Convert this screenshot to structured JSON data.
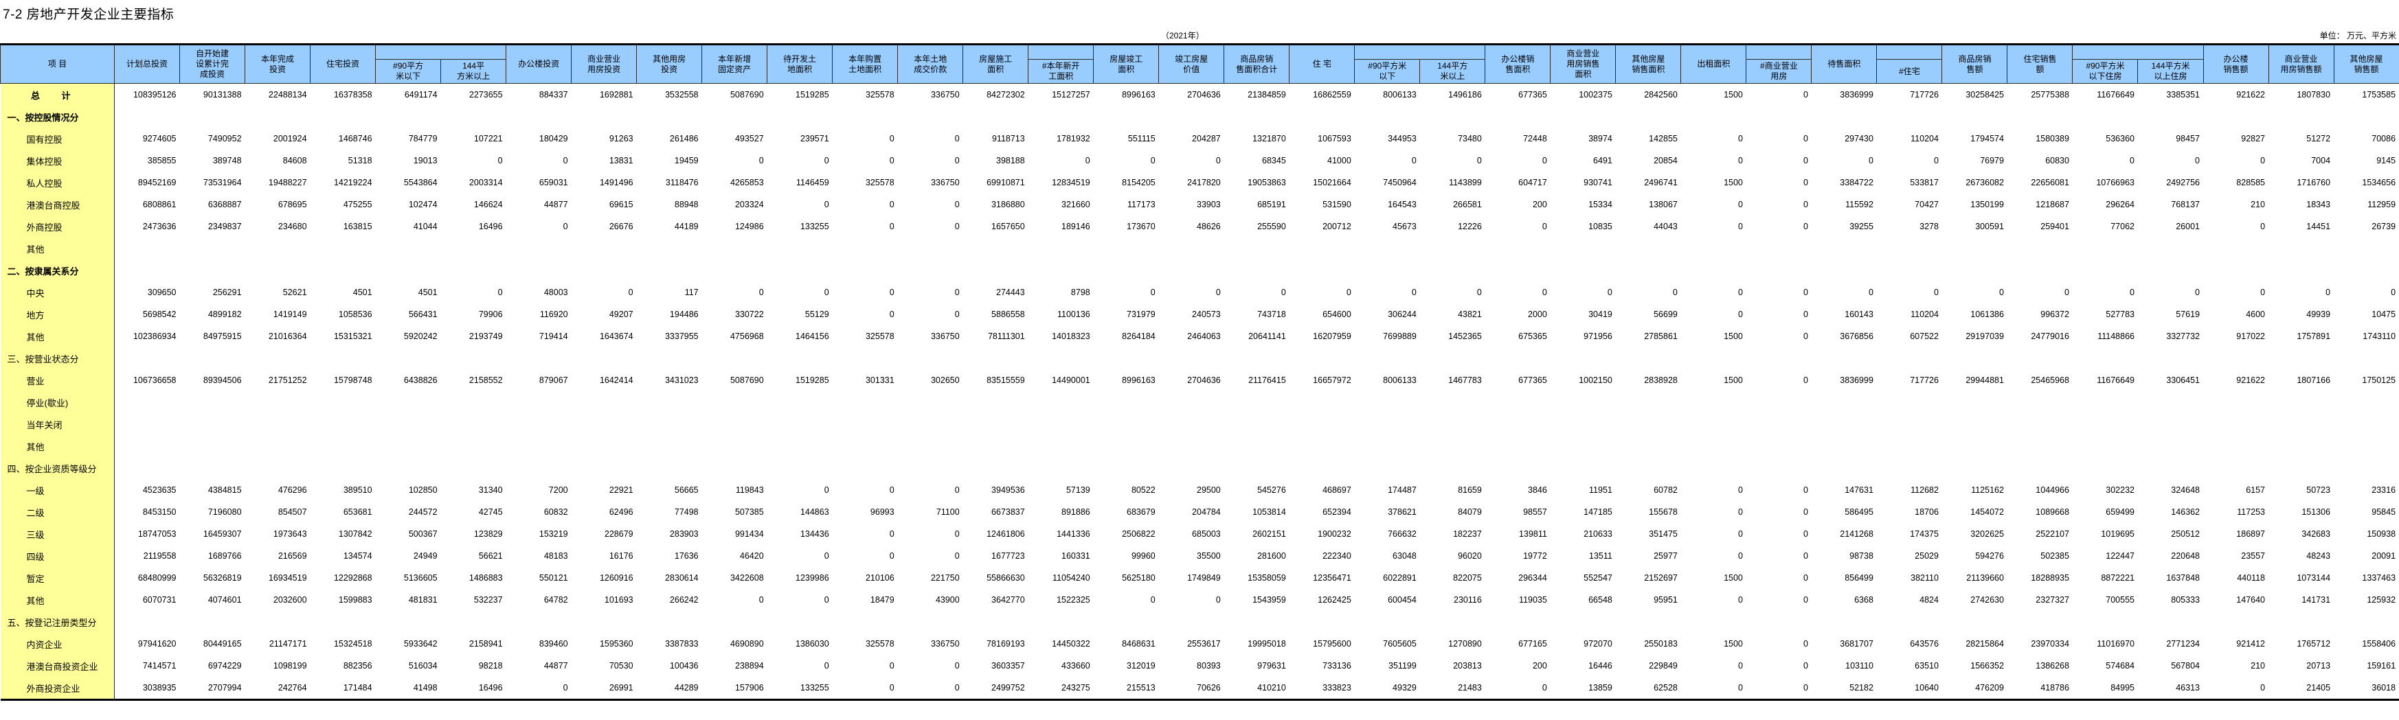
{
  "title": "7-2 房地产开发企业主要指标",
  "year": "（2021年）",
  "unit": "单位：  万元、平方米",
  "colors": {
    "header_bg": "#99ccff",
    "label_bg": "#ffff99"
  },
  "header": {
    "item_label": "项          目",
    "columns": [
      {
        "label": "计划总投资"
      },
      {
        "label": "自开始建\n设累计完\n成投资"
      },
      {
        "label": "本年完成\n投资"
      },
      {
        "label": "住宅投资",
        "group": true
      },
      {
        "label": "#90平方\n米以下",
        "sub": true
      },
      {
        "label": "144平\n方米以上",
        "sub": true
      },
      {
        "label": "办公楼投资"
      },
      {
        "label": "商业营业\n用房投资"
      },
      {
        "label": "其他用房\n投资"
      },
      {
        "label": "本年新增\n固定资产"
      },
      {
        "label": "待开发土\n地面积"
      },
      {
        "label": "本年购置\n土地面积"
      },
      {
        "label": "本年土地\n成交价款"
      },
      {
        "label": "房屋施工\n面积",
        "group": true
      },
      {
        "label": "#本年新开\n工面积",
        "sub": true
      },
      {
        "label": "房屋竣工\n面积"
      },
      {
        "label": "竣工房屋\n价值"
      },
      {
        "label": "商品房销\n售面积合计"
      },
      {
        "label": "住  宅",
        "group": true
      },
      {
        "label": "#90平方米\n以下",
        "sub": true
      },
      {
        "label": "144平方\n米以上",
        "sub": true
      },
      {
        "label": "办公楼销\n售面积"
      },
      {
        "label": "商业营业\n用房销售\n面积"
      },
      {
        "label": "其他房屋\n销售面积"
      },
      {
        "label": "出租面积",
        "group": true
      },
      {
        "label": "#商业营业\n用房",
        "sub": true
      },
      {
        "label": "待售面积",
        "group": true
      },
      {
        "label": "#住宅",
        "sub": true
      },
      {
        "label": "商品房销\n售额"
      },
      {
        "label": "住宅销售\n额",
        "group": true
      },
      {
        "label": "#90平方米\n以下住房",
        "sub": true
      },
      {
        "label": "144平方米\n以上住房",
        "sub": true
      },
      {
        "label": "办公楼\n销售额"
      },
      {
        "label": "商业营业\n用房销售额"
      },
      {
        "label": "其他房屋\n销售额"
      }
    ]
  },
  "rows": [
    {
      "label": "总  计",
      "kind": "total",
      "bold": true,
      "values": [
        108395126,
        90131388,
        22488134,
        16378358,
        6491174,
        2273655,
        884337,
        1692881,
        3532558,
        5087690,
        1519285,
        325578,
        336750,
        84272302,
        15127257,
        8996163,
        2704636,
        21384859,
        16862559,
        8006133,
        1496186,
        677365,
        1002375,
        2842560,
        1500,
        0,
        3836999,
        717726,
        30258425,
        25775388,
        11676649,
        3385351,
        921622,
        1807830,
        1753585
      ]
    },
    {
      "label": "一、按控股情况分",
      "kind": "section",
      "bold": true,
      "values": []
    },
    {
      "label": "国有控股",
      "values": [
        9274605,
        7490952,
        2001924,
        1468746,
        784779,
        107221,
        180429,
        91263,
        261486,
        493527,
        239571,
        0,
        0,
        9118713,
        1781932,
        551115,
        204287,
        1321870,
        1067593,
        344953,
        73480,
        72448,
        38974,
        142855,
        0,
        0,
        297430,
        110204,
        1794574,
        1580389,
        536360,
        98457,
        92827,
        51272,
        70086
      ]
    },
    {
      "label": "集体控股",
      "values": [
        385855,
        389748,
        84608,
        51318,
        19013,
        0,
        0,
        13831,
        19459,
        0,
        0,
        0,
        0,
        398188,
        0,
        0,
        0,
        68345,
        41000,
        0,
        0,
        0,
        6491,
        20854,
        0,
        0,
        0,
        0,
        76979,
        60830,
        0,
        0,
        0,
        7004,
        9145
      ]
    },
    {
      "label": "私人控股",
      "values": [
        89452169,
        73531964,
        19488227,
        14219224,
        5543864,
        2003314,
        659031,
        1491496,
        3118476,
        4265853,
        1146459,
        325578,
        336750,
        69910871,
        12834519,
        8154205,
        2417820,
        19053863,
        15021664,
        7450964,
        1143899,
        604717,
        930741,
        2496741,
        1500,
        0,
        3384722,
        533817,
        26736082,
        22656081,
        10766963,
        2492756,
        828585,
        1716760,
        1534656
      ]
    },
    {
      "label": "港澳台商控股",
      "values": [
        6808861,
        6368887,
        678695,
        475255,
        102474,
        146624,
        44877,
        69615,
        88948,
        203324,
        0,
        0,
        0,
        3186880,
        321660,
        117173,
        33903,
        685191,
        531590,
        164543,
        266581,
        200,
        15334,
        138067,
        0,
        0,
        115592,
        70427,
        1350199,
        1218687,
        296264,
        768137,
        210,
        18343,
        112959
      ]
    },
    {
      "label": "外商控股",
      "values": [
        2473636,
        2349837,
        234680,
        163815,
        41044,
        16496,
        0,
        26676,
        44189,
        124986,
        133255,
        0,
        0,
        1657650,
        189146,
        173670,
        48626,
        255590,
        200712,
        45673,
        12226,
        0,
        10835,
        44043,
        0,
        0,
        39255,
        3278,
        300591,
        259401,
        77062,
        26001,
        0,
        14451,
        26739
      ]
    },
    {
      "label": "其他",
      "values": []
    },
    {
      "label": "二、按隶属关系分",
      "kind": "section",
      "bold": true,
      "values": []
    },
    {
      "label": "中央",
      "values": [
        309650,
        256291,
        52621,
        4501,
        4501,
        0,
        48003,
        0,
        117,
        0,
        0,
        0,
        0,
        274443,
        8798,
        0,
        0,
        0,
        0,
        0,
        0,
        0,
        0,
        0,
        0,
        0,
        0,
        0,
        0,
        0,
        0,
        0,
        0,
        0,
        0
      ]
    },
    {
      "label": "地方",
      "values": [
        5698542,
        4899182,
        1419149,
        1058536,
        566431,
        79906,
        116920,
        49207,
        194486,
        330722,
        55129,
        0,
        0,
        5886558,
        1100136,
        731979,
        240573,
        743718,
        654600,
        306244,
        43821,
        2000,
        30419,
        56699,
        0,
        0,
        160143,
        110204,
        1061386,
        996372,
        527783,
        57619,
        4600,
        49939,
        10475
      ]
    },
    {
      "label": "其他",
      "values": [
        102386934,
        84975915,
        21016364,
        15315321,
        5920242,
        2193749,
        719414,
        1643674,
        3337955,
        4756968,
        1464156,
        325578,
        336750,
        78111301,
        14018323,
        8264184,
        2464063,
        20641141,
        16207959,
        7699889,
        1452365,
        675365,
        971956,
        2785861,
        1500,
        0,
        3676856,
        607522,
        29197039,
        24779016,
        11148866,
        3327732,
        917022,
        1757891,
        1743110
      ]
    },
    {
      "label": "三、按营业状态分",
      "kind": "section",
      "values": []
    },
    {
      "label": "营业",
      "values": [
        106736658,
        89394506,
        21751252,
        15798748,
        6438826,
        2158552,
        879067,
        1642414,
        3431023,
        5087690,
        1519285,
        301331,
        302650,
        83515559,
        14490001,
        8996163,
        2704636,
        21176415,
        16657972,
        8006133,
        1467783,
        677365,
        1002150,
        2838928,
        1500,
        0,
        3836999,
        717726,
        29944881,
        25465968,
        11676649,
        3306451,
        921622,
        1807166,
        1750125
      ]
    },
    {
      "label": "停业(歇业)",
      "values": []
    },
    {
      "label": "当年关闭",
      "values": []
    },
    {
      "label": "其他",
      "values": []
    },
    {
      "label": "四、按企业资质等级分",
      "kind": "section",
      "values": []
    },
    {
      "label": "一级",
      "values": [
        4523635,
        4384815,
        476296,
        389510,
        102850,
        31340,
        7200,
        22921,
        56665,
        119843,
        0,
        0,
        0,
        3949536,
        57139,
        80522,
        29500,
        545276,
        468697,
        174487,
        81659,
        3846,
        11951,
        60782,
        0,
        0,
        147631,
        112682,
        1125162,
        1044966,
        302232,
        324648,
        6157,
        50723,
        23316
      ]
    },
    {
      "label": "二级",
      "values": [
        8453150,
        7196080,
        854507,
        653681,
        244572,
        42745,
        60832,
        62496,
        77498,
        507385,
        144863,
        96993,
        71100,
        6673837,
        891886,
        683679,
        204784,
        1053814,
        652394,
        378621,
        84079,
        98557,
        147185,
        155678,
        0,
        0,
        586495,
        18706,
        1454072,
        1089668,
        659499,
        146362,
        117253,
        151306,
        95845
      ]
    },
    {
      "label": "三级",
      "values": [
        18747053,
        16459307,
        1973643,
        1307842,
        500367,
        123829,
        153219,
        228679,
        283903,
        991434,
        134436,
        0,
        0,
        12461806,
        1441336,
        2506822,
        685003,
        2602151,
        1900232,
        766632,
        182237,
        139811,
        210633,
        351475,
        0,
        0,
        2141268,
        174375,
        3202625,
        2522107,
        1019695,
        250512,
        186897,
        342683,
        150938
      ]
    },
    {
      "label": "四级",
      "values": [
        2119558,
        1689766,
        216569,
        134574,
        24949,
        56621,
        48183,
        16176,
        17636,
        46420,
        0,
        0,
        0,
        1677723,
        160331,
        99960,
        35500,
        281600,
        222340,
        63048,
        96020,
        19772,
        13511,
        25977,
        0,
        0,
        98738,
        25029,
        594276,
        502385,
        122447,
        220648,
        23557,
        48243,
        20091
      ]
    },
    {
      "label": "暂定",
      "values": [
        68480999,
        56326819,
        16934519,
        12292868,
        5136605,
        1486883,
        550121,
        1260916,
        2830614,
        3422608,
        1239986,
        210106,
        221750,
        55866630,
        11054240,
        5625180,
        1749849,
        15358059,
        12356471,
        6022891,
        822075,
        296344,
        552547,
        2152697,
        1500,
        0,
        856499,
        382110,
        21139660,
        18288935,
        8872221,
        1637848,
        440118,
        1073144,
        1337463
      ]
    },
    {
      "label": "其他",
      "values": [
        6070731,
        4074601,
        2032600,
        1599883,
        481831,
        532237,
        64782,
        101693,
        266242,
        0,
        0,
        18479,
        43900,
        3642770,
        1522325,
        0,
        0,
        1543959,
        1262425,
        600454,
        230116,
        119035,
        66548,
        95951,
        0,
        0,
        6368,
        4824,
        2742630,
        2327327,
        700555,
        805333,
        147640,
        141731,
        125932
      ]
    },
    {
      "label": "五、按登记注册类型分",
      "kind": "section",
      "values": []
    },
    {
      "label": "内资企业",
      "values": [
        97941620,
        80449165,
        21147171,
        15324518,
        5933642,
        2158941,
        839460,
        1595360,
        3387833,
        4690890,
        1386030,
        325578,
        336750,
        78169193,
        14450322,
        8468631,
        2553617,
        19995018,
        15795600,
        7605605,
        1270890,
        677165,
        972070,
        2550183,
        1500,
        0,
        3681707,
        643576,
        28215864,
        23970334,
        11016970,
        2771234,
        921412,
        1765712,
        1558406
      ]
    },
    {
      "label": "港澳台商投资企业",
      "values": [
        7414571,
        6974229,
        1098199,
        882356,
        516034,
        98218,
        44877,
        70530,
        100436,
        238894,
        0,
        0,
        0,
        3603357,
        433660,
        312019,
        80393,
        979631,
        733136,
        351199,
        203813,
        200,
        16446,
        229849,
        0,
        0,
        103110,
        63510,
        1566352,
        1386268,
        574684,
        567804,
        210,
        20713,
        159161
      ]
    },
    {
      "label": "外商投资企业",
      "values": [
        3038935,
        2707994,
        242764,
        171484,
        41498,
        16496,
        0,
        26991,
        44289,
        157906,
        133255,
        0,
        0,
        2499752,
        243275,
        215513,
        70626,
        410210,
        333823,
        49329,
        21483,
        0,
        13859,
        62528,
        0,
        0,
        52182,
        10640,
        476209,
        418786,
        84995,
        46313,
        0,
        21405,
        36018
      ]
    }
  ]
}
